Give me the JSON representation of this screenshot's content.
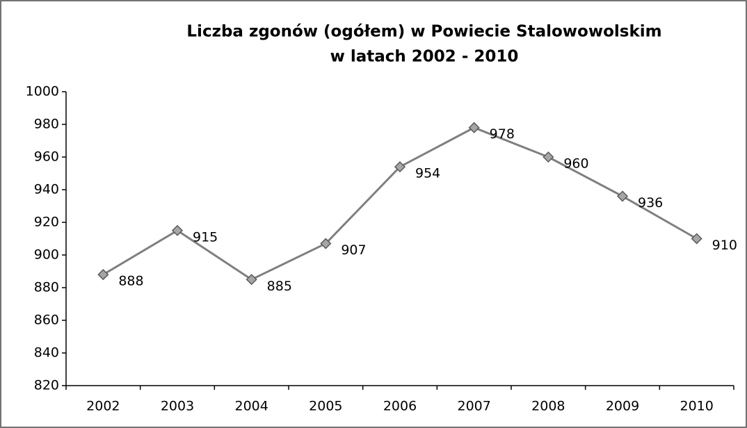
{
  "chart_data": {
    "type": "line",
    "title": [
      "Liczba zgonów (ogółem) w Powiecie Stalowowolskim",
      "w latach 2002 - 2010"
    ],
    "categories": [
      "2002",
      "2003",
      "2004",
      "2005",
      "2006",
      "2007",
      "2008",
      "2009",
      "2010"
    ],
    "series": [
      {
        "color": "#7f7f7f",
        "values": [
          888,
          915,
          885,
          907,
          954,
          978,
          960,
          936,
          910
        ]
      }
    ],
    "ylim": [
      820,
      1000
    ],
    "yticks": [
      820,
      840,
      860,
      880,
      900,
      920,
      940,
      960,
      980,
      1000
    ],
    "grid": false
  }
}
